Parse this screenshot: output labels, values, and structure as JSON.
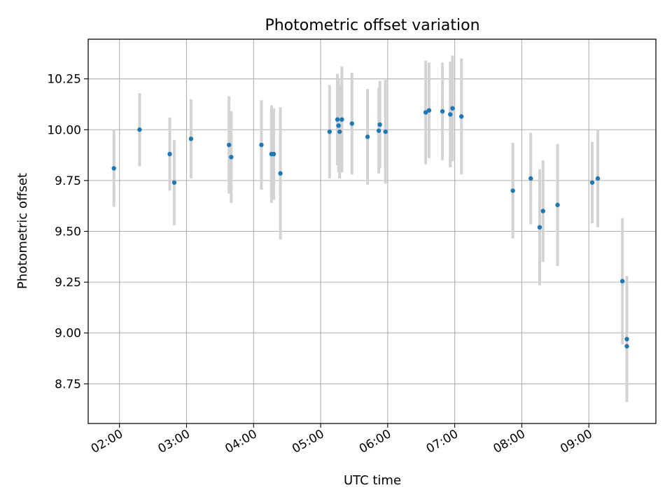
{
  "chart_data": {
    "type": "scatter",
    "title": "Photometric offset variation",
    "xlabel": "UTC time",
    "ylabel": "Photometric offset",
    "xlim": [
      "01:32",
      "10:00"
    ],
    "ylim": [
      8.555,
      10.445
    ],
    "x_ticks": [
      "02:00",
      "03:00",
      "04:00",
      "05:00",
      "06:00",
      "07:00",
      "08:00",
      "09:00"
    ],
    "y_ticks": [
      8.75,
      9.0,
      9.25,
      9.5,
      9.75,
      10.0,
      10.25
    ],
    "y_tick_labels": [
      "8.75",
      "9.00",
      "9.25",
      "9.50",
      "9.75",
      "10.00",
      "10.25"
    ],
    "grid": true,
    "colors": {
      "point": "#1f77b4",
      "errorbar": "#d3d3d3",
      "grid": "#b0b0b0"
    },
    "points": [
      {
        "x": "01:55",
        "y": 9.81,
        "err": 0.19
      },
      {
        "x": "02:18",
        "y": 10.0,
        "err": 0.18
      },
      {
        "x": "02:45",
        "y": 9.88,
        "err": 0.18
      },
      {
        "x": "02:49",
        "y": 9.74,
        "err": 0.21
      },
      {
        "x": "03:04",
        "y": 9.955,
        "err": 0.195
      },
      {
        "x": "03:38",
        "y": 9.925,
        "err": 0.24
      },
      {
        "x": "03:40",
        "y": 9.865,
        "err": 0.225
      },
      {
        "x": "04:07",
        "y": 9.925,
        "err": 0.22
      },
      {
        "x": "04:16",
        "y": 9.88,
        "err": 0.24
      },
      {
        "x": "04:18",
        "y": 9.88,
        "err": 0.225
      },
      {
        "x": "04:24",
        "y": 9.785,
        "err": 0.325
      },
      {
        "x": "05:08",
        "y": 9.99,
        "err": 0.23
      },
      {
        "x": "05:15",
        "y": 10.05,
        "err": 0.225
      },
      {
        "x": "05:16",
        "y": 10.02,
        "err": 0.23
      },
      {
        "x": "05:17",
        "y": 9.99,
        "err": 0.23
      },
      {
        "x": "05:19",
        "y": 10.05,
        "err": 0.26
      },
      {
        "x": "05:28",
        "y": 10.03,
        "err": 0.25
      },
      {
        "x": "05:42",
        "y": 9.965,
        "err": 0.235
      },
      {
        "x": "05:52",
        "y": 9.995,
        "err": 0.21
      },
      {
        "x": "05:53",
        "y": 10.025,
        "err": 0.215
      },
      {
        "x": "05:58",
        "y": 9.99,
        "err": 0.255
      },
      {
        "x": "06:34",
        "y": 10.085,
        "err": 0.255
      },
      {
        "x": "06:37",
        "y": 10.095,
        "err": 0.235
      },
      {
        "x": "06:49",
        "y": 10.09,
        "err": 0.24
      },
      {
        "x": "06:56",
        "y": 10.075,
        "err": 0.26
      },
      {
        "x": "06:58",
        "y": 10.105,
        "err": 0.26
      },
      {
        "x": "07:06",
        "y": 10.065,
        "err": 0.285
      },
      {
        "x": "07:52",
        "y": 9.7,
        "err": 0.235
      },
      {
        "x": "08:08",
        "y": 9.76,
        "err": 0.225
      },
      {
        "x": "08:16",
        "y": 9.52,
        "err": 0.285
      },
      {
        "x": "08:19",
        "y": 9.6,
        "err": 0.25
      },
      {
        "x": "08:32",
        "y": 9.63,
        "err": 0.3
      },
      {
        "x": "09:03",
        "y": 9.74,
        "err": 0.2
      },
      {
        "x": "09:08",
        "y": 9.76,
        "err": 0.24
      },
      {
        "x": "09:30",
        "y": 9.255,
        "err": 0.31
      },
      {
        "x": "09:34",
        "y": 8.97,
        "err": 0.31
      },
      {
        "x": "09:34",
        "y": 8.935,
        "err": 0.0
      }
    ]
  }
}
